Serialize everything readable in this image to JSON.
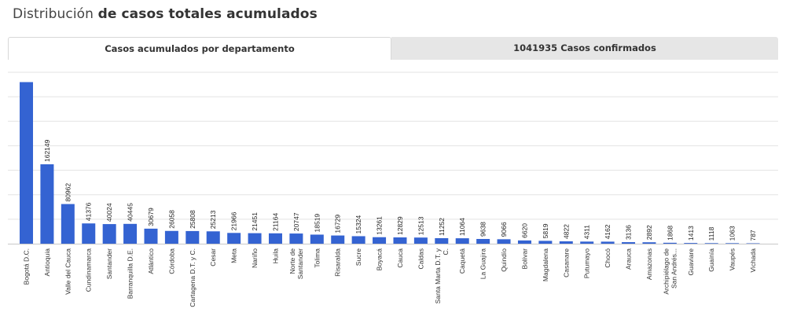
{
  "page": {
    "title_prefix": "Distribución",
    "title_bold": "de casos totales acumulados"
  },
  "tabs": [
    {
      "label": "Casos acumulados por departamento",
      "active": true
    },
    {
      "label": "1041935 Casos confirmados",
      "active": false
    }
  ],
  "colors": {
    "bar": "#3463d2",
    "grid": "#e3e3e3"
  },
  "chart_data": {
    "type": "bar",
    "title": "",
    "xlabel": "",
    "ylabel": "",
    "ylim": [
      0,
      400000
    ],
    "grid": true,
    "categories": [
      [
        "Bogotá D.C."
      ],
      [
        "Antioquia"
      ],
      [
        "Valle del Cauca"
      ],
      [
        "Cundinamarca"
      ],
      [
        "Santander"
      ],
      [
        "Barranquilla D.E."
      ],
      [
        "Atlántico"
      ],
      [
        "Córdoba"
      ],
      [
        "Cartagena D.T. y C."
      ],
      [
        "Cesar"
      ],
      [
        "Meta"
      ],
      [
        "Nariño"
      ],
      [
        "Huila"
      ],
      [
        "Norte de",
        "Santander"
      ],
      [
        "Tolima"
      ],
      [
        "Risaralda"
      ],
      [
        "Sucre"
      ],
      [
        "Boyacá"
      ],
      [
        "Cauca"
      ],
      [
        "Caldas"
      ],
      [
        "Santa Marta D.T. y",
        "C."
      ],
      [
        "Caquetá"
      ],
      [
        "La Guajira"
      ],
      [
        "Quindío"
      ],
      [
        "Bolívar"
      ],
      [
        "Magdalena"
      ],
      [
        "Casanare"
      ],
      [
        "Putumayo"
      ],
      [
        "Chocó"
      ],
      [
        "Arauca"
      ],
      [
        "Amazonas"
      ],
      [
        "Archipiélago de",
        "San Andrés..."
      ],
      [
        "Guaviare"
      ],
      [
        "Guainía"
      ],
      [
        "Vaupés"
      ],
      [
        "Vichada"
      ]
    ],
    "values": [
      330000,
      162149,
      80962,
      41376,
      40024,
      40445,
      30679,
      26058,
      25808,
      25213,
      21966,
      21451,
      21164,
      20747,
      18519,
      16729,
      15324,
      13261,
      12829,
      12513,
      11252,
      11064,
      9638,
      9066,
      6620,
      5819,
      4822,
      4311,
      4162,
      3136,
      2892,
      1868,
      1413,
      1118,
      1063,
      787
    ],
    "labels": [
      "",
      "162149",
      "80962",
      "41376",
      "40024",
      "40445",
      "30679",
      "26058",
      "25808",
      "25213",
      "21966",
      "21451",
      "21164",
      "20747",
      "18519",
      "16729",
      "15324",
      "13261",
      "12829",
      "12513",
      "11252",
      "11064",
      "9638",
      "9066",
      "6620",
      "5819",
      "4822",
      "4311",
      "4162",
      "3136",
      "2892",
      "1868",
      "1413",
      "1118",
      "1063",
      "787"
    ]
  }
}
